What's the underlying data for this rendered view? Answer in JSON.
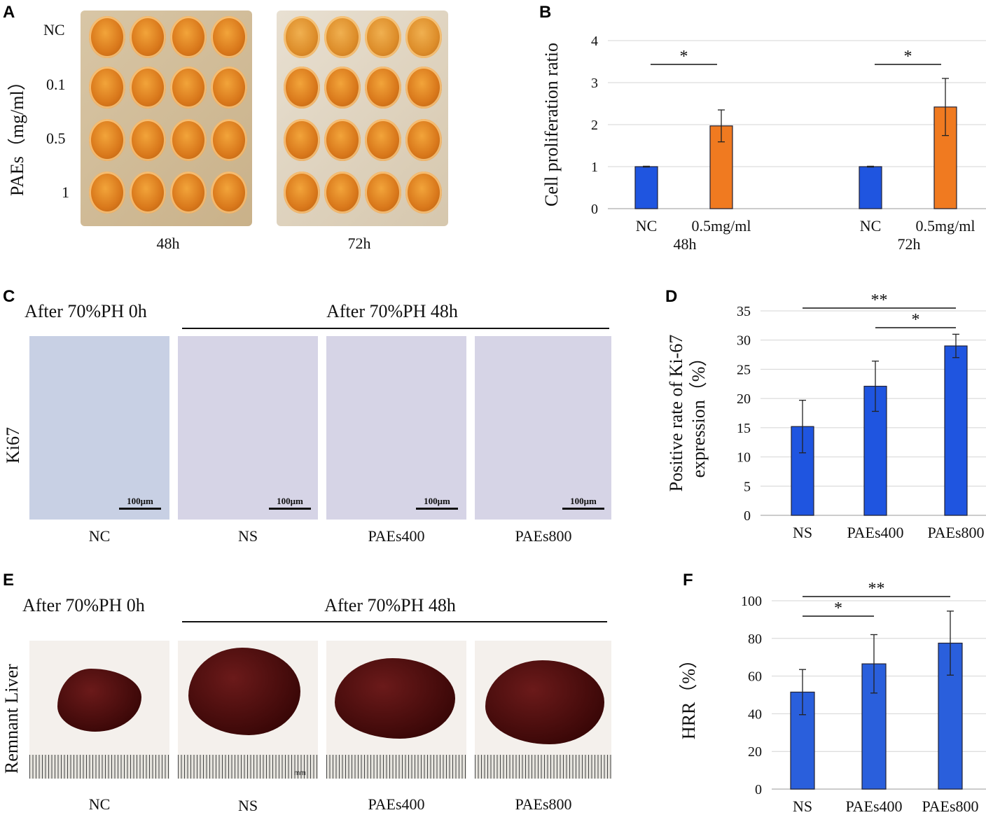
{
  "panels": {
    "A": {
      "letter": "A",
      "ylabel": "PAEs（mg/ml）",
      "row_labels": [
        "NC",
        "0.1",
        "0.5",
        "1"
      ],
      "col_labels": [
        "48h",
        "72h"
      ]
    },
    "C": {
      "letter": "C",
      "header_left": "After 70%PH 0h",
      "header_right": "After 70%PH 48h",
      "row_label": "Ki67",
      "scale_label": "100μm",
      "col_labels": [
        "NC",
        "NS",
        "PAEs400",
        "PAEs800"
      ]
    },
    "E": {
      "letter": "E",
      "header_left": "After 70%PH 0h",
      "header_right": "After 70%PH 48h",
      "row_label": "Remnant Liver",
      "ruler_unit": "mm",
      "col_labels": [
        "NC",
        "NS",
        "PAEs400",
        "PAEs800"
      ]
    }
  },
  "chart_data": [
    {
      "letter": "B",
      "type": "bar",
      "ylabel": "Cell proliferation ratio",
      "ylim": [
        0,
        4
      ],
      "yticks": [
        "0",
        "1",
        "2",
        "3",
        "4"
      ],
      "groups": [
        "48h",
        "72h"
      ],
      "categories": [
        "NC",
        "0.5mg/ml",
        "NC",
        "0.5mg/ml"
      ],
      "values": [
        1.0,
        1.97,
        1.0,
        2.42
      ],
      "errors": [
        0.01,
        0.38,
        0.01,
        0.68
      ],
      "colors": [
        "#1f55e0",
        "#f07a20",
        "#1f55e0",
        "#f07a20"
      ],
      "significance": [
        {
          "from": 0,
          "to": 1,
          "label": "*"
        },
        {
          "from": 2,
          "to": 3,
          "label": "*"
        }
      ],
      "grid": true
    },
    {
      "letter": "D",
      "type": "bar",
      "ylabel": "Positive rate of Ki-67",
      "ylabel2": "expression（%）",
      "ylim": [
        0,
        35
      ],
      "yticks": [
        "0",
        "5",
        "10",
        "15",
        "20",
        "25",
        "30",
        "35"
      ],
      "categories": [
        "NS",
        "PAEs400",
        "PAEs800"
      ],
      "values": [
        15.2,
        22.1,
        29.0
      ],
      "errors": [
        4.5,
        4.3,
        2.0
      ],
      "colors": [
        "#1f55e0",
        "#1f55e0",
        "#1f55e0"
      ],
      "significance": [
        {
          "from": 0,
          "to": 2,
          "label": "**"
        },
        {
          "from": 1,
          "to": 2,
          "label": "*"
        }
      ],
      "grid": true
    },
    {
      "letter": "F",
      "type": "bar",
      "ylabel": "HRR（%）",
      "ylim": [
        0,
        100
      ],
      "yticks": [
        "0",
        "20",
        "40",
        "60",
        "80",
        "100"
      ],
      "categories": [
        "NS",
        "PAEs400",
        "PAEs800"
      ],
      "values": [
        51.5,
        66.5,
        77.5
      ],
      "errors": [
        12.0,
        15.5,
        17.0
      ],
      "colors": [
        "#2a5fdc",
        "#2a5fdc",
        "#2a5fdc"
      ],
      "significance": [
        {
          "from": 0,
          "to": 1,
          "label": "*"
        },
        {
          "from": 0,
          "to": 2,
          "label": "**"
        }
      ],
      "grid": true
    }
  ]
}
